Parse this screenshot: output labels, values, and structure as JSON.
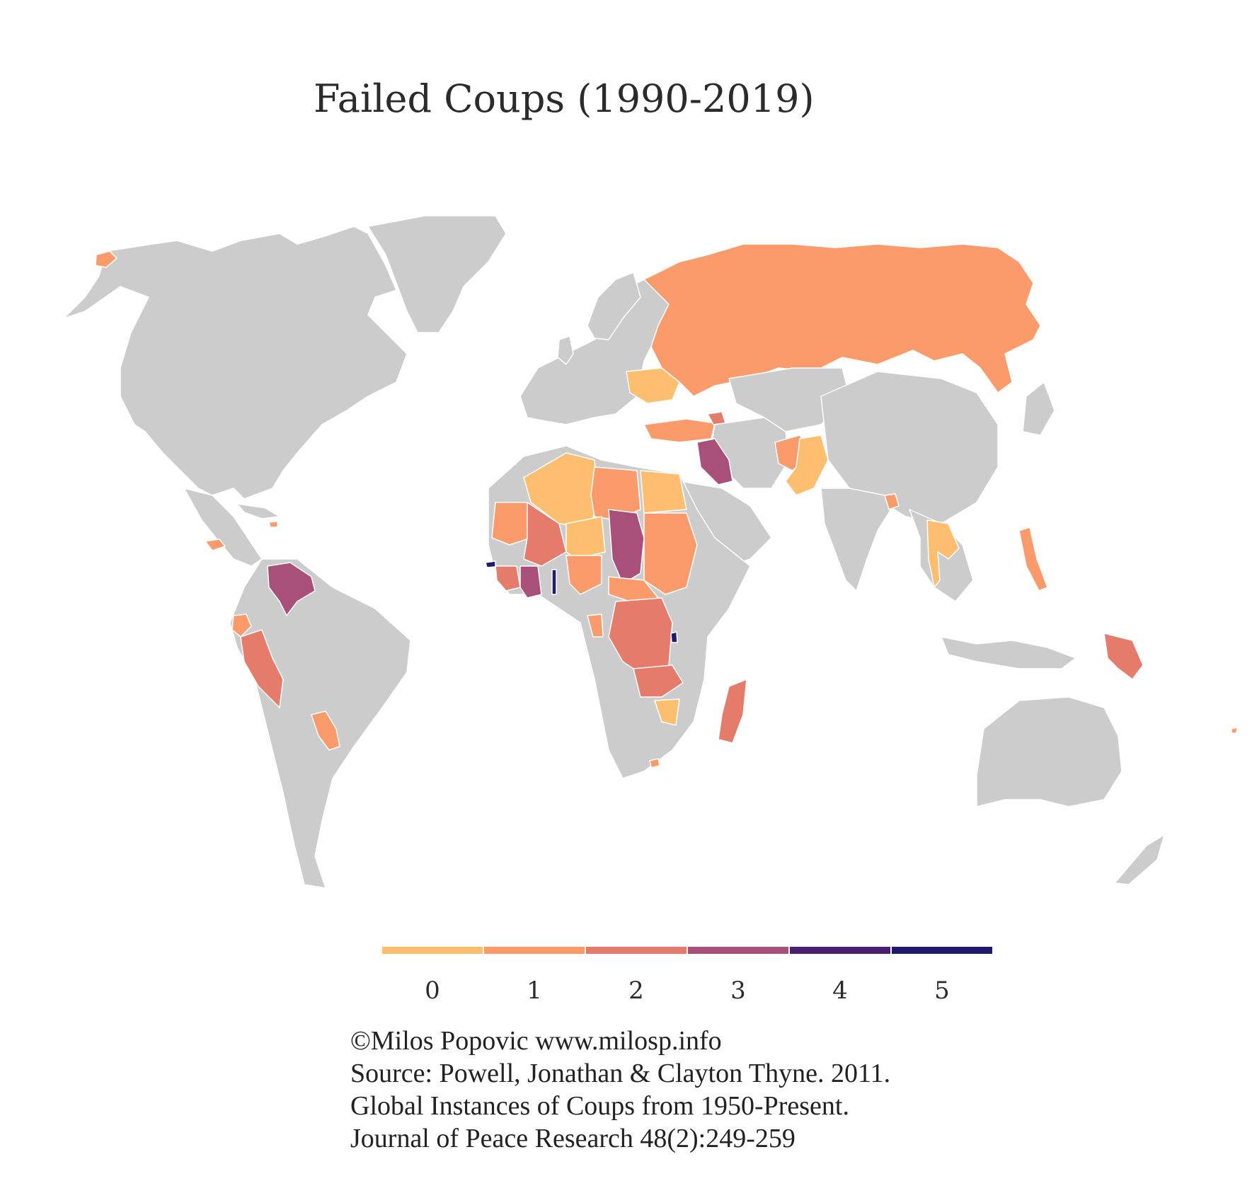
{
  "title": "Failed Coups (1990-2019)",
  "map": {
    "projection": "Robinson-like world map",
    "no_data_color": "#cccccc",
    "border_color": "#ffffff",
    "countries": [
      {
        "name": "Russia",
        "value": 1
      },
      {
        "name": "Ukraine",
        "value": 0
      },
      {
        "name": "Turkey",
        "value": 1
      },
      {
        "name": "Armenia/Azerbaijan",
        "value": 2
      },
      {
        "name": "Iraq",
        "value": 3
      },
      {
        "name": "Afghanistan",
        "value": 1
      },
      {
        "name": "Pakistan",
        "value": 0
      },
      {
        "name": "Bangladesh",
        "value": 1
      },
      {
        "name": "Thailand",
        "value": 0
      },
      {
        "name": "Philippines",
        "value": 1
      },
      {
        "name": "Papua New Guinea",
        "value": 2
      },
      {
        "name": "Algeria",
        "value": 0
      },
      {
        "name": "Libya",
        "value": 1
      },
      {
        "name": "Egypt",
        "value": 0
      },
      {
        "name": "Mauritania",
        "value": 1
      },
      {
        "name": "Mali",
        "value": 2
      },
      {
        "name": "Niger",
        "value": 0
      },
      {
        "name": "Chad",
        "value": 3
      },
      {
        "name": "Sudan",
        "value": 1
      },
      {
        "name": "Guinea-Bissau",
        "value": 5
      },
      {
        "name": "Guinea",
        "value": 2
      },
      {
        "name": "Côte d'Ivoire",
        "value": 3
      },
      {
        "name": "Togo",
        "value": 5
      },
      {
        "name": "Nigeria",
        "value": 1
      },
      {
        "name": "Central African Republic",
        "value": 1
      },
      {
        "name": "Equatorial Guinea",
        "value": 1
      },
      {
        "name": "DR Congo",
        "value": 2
      },
      {
        "name": "Burundi",
        "value": 5
      },
      {
        "name": "Zambia",
        "value": 2
      },
      {
        "name": "Zimbabwe",
        "value": 0
      },
      {
        "name": "Madagascar",
        "value": 2
      },
      {
        "name": "Lesotho",
        "value": 1
      },
      {
        "name": "Venezuela",
        "value": 3
      },
      {
        "name": "Ecuador",
        "value": 1
      },
      {
        "name": "Peru",
        "value": 2
      },
      {
        "name": "Paraguay",
        "value": 1
      },
      {
        "name": "Honduras",
        "value": 1
      },
      {
        "name": "Haiti",
        "value": 1
      },
      {
        "name": "Greenland/Alaska",
        "value": null
      }
    ]
  },
  "legend": {
    "labels": [
      "0",
      "1",
      "2",
      "3",
      "4",
      "5"
    ],
    "colors": [
      "#fdbf6f",
      "#fb9a6a",
      "#e57b6a",
      "#a8507a",
      "#4b1f6f",
      "#1f1a6e"
    ]
  },
  "caption": [
    "©Milos Popovic www.milosp.info",
    "Source: Powell, Jonathan & Clayton Thyne. 2011.",
    "Global Instances of Coups from 1950-Present.",
    "Journal of Peace Research 48(2):249-259"
  ]
}
